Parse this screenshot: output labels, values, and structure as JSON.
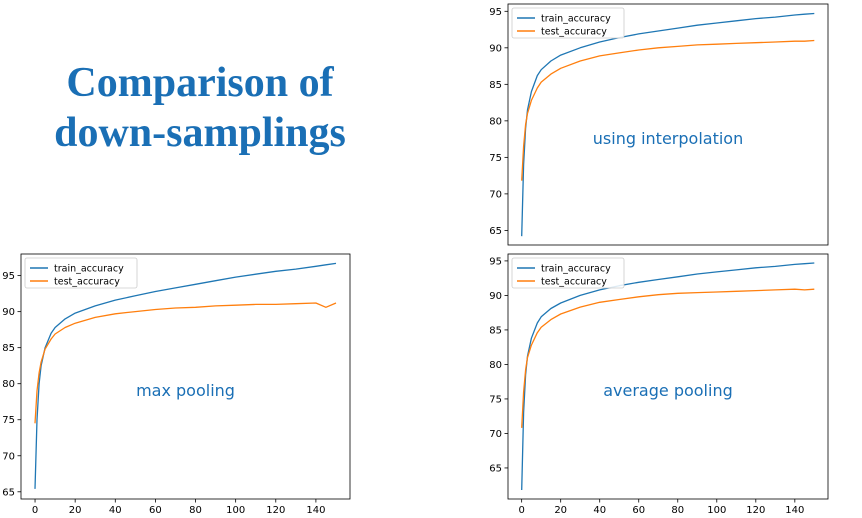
{
  "slide": {
    "title_line1": "Comparison of",
    "title_line2": "down-samplings"
  },
  "colors": {
    "title": "#1a6fb5",
    "train": "#1f77b4",
    "test": "#ff7f0e",
    "annotation": "#1a6fb5"
  },
  "chart_data": [
    {
      "id": "interp",
      "type": "line",
      "annotation": "using interpolation",
      "xlim": [
        -7,
        157
      ],
      "ylim": [
        63,
        96
      ],
      "xticks": [],
      "yticks": [
        65,
        70,
        75,
        80,
        85,
        90,
        95
      ],
      "legend": "top-left",
      "series": [
        {
          "name": "train_accuracy",
          "x": [
            0,
            1,
            2,
            3,
            5,
            8,
            10,
            15,
            20,
            30,
            40,
            50,
            60,
            70,
            80,
            90,
            100,
            110,
            120,
            130,
            140,
            145,
            150
          ],
          "values": [
            64.2,
            74.0,
            79.0,
            81.5,
            84.0,
            86.2,
            87.0,
            88.2,
            89.0,
            90.0,
            90.8,
            91.4,
            91.9,
            92.3,
            92.7,
            93.1,
            93.4,
            93.7,
            94.0,
            94.2,
            94.5,
            94.6,
            94.7
          ]
        },
        {
          "name": "test_accuracy",
          "x": [
            0,
            1,
            2,
            3,
            5,
            8,
            10,
            15,
            20,
            30,
            40,
            50,
            60,
            70,
            80,
            90,
            100,
            110,
            120,
            130,
            140,
            145,
            150
          ],
          "values": [
            71.8,
            76.5,
            79.5,
            81.0,
            82.8,
            84.5,
            85.3,
            86.4,
            87.2,
            88.2,
            88.9,
            89.3,
            89.7,
            90.0,
            90.2,
            90.4,
            90.5,
            90.6,
            90.7,
            90.8,
            90.9,
            90.9,
            91.0
          ]
        }
      ]
    },
    {
      "id": "max",
      "type": "line",
      "annotation": "max pooling",
      "xlim": [
        -7,
        157
      ],
      "ylim": [
        64,
        98
      ],
      "xticks": [
        0,
        20,
        40,
        60,
        80,
        100,
        120,
        140
      ],
      "yticks": [
        65,
        70,
        75,
        80,
        85,
        90,
        95
      ],
      "legend": "top-left",
      "series": [
        {
          "name": "train_accuracy",
          "x": [
            0,
            1,
            2,
            3,
            5,
            8,
            10,
            15,
            20,
            30,
            40,
            50,
            60,
            70,
            80,
            90,
            100,
            110,
            120,
            130,
            140,
            145,
            150
          ],
          "values": [
            65.4,
            75.0,
            80.0,
            82.5,
            85.0,
            87.0,
            87.8,
            89.0,
            89.8,
            90.8,
            91.6,
            92.2,
            92.8,
            93.3,
            93.8,
            94.3,
            94.8,
            95.2,
            95.6,
            95.9,
            96.3,
            96.5,
            96.7
          ]
        },
        {
          "name": "test_accuracy",
          "x": [
            0,
            1,
            2,
            3,
            5,
            8,
            10,
            15,
            20,
            30,
            40,
            50,
            60,
            70,
            80,
            90,
            100,
            110,
            120,
            130,
            140,
            145,
            150
          ],
          "values": [
            74.5,
            79.0,
            81.5,
            83.0,
            84.8,
            86.2,
            86.9,
            87.8,
            88.4,
            89.2,
            89.7,
            90.0,
            90.3,
            90.5,
            90.6,
            90.8,
            90.9,
            91.0,
            91.0,
            91.1,
            91.2,
            90.6,
            91.2
          ]
        }
      ]
    },
    {
      "id": "avg",
      "type": "line",
      "annotation": "average pooling",
      "xlim": [
        -7,
        157
      ],
      "ylim": [
        60.5,
        96
      ],
      "xticks": [
        0,
        20,
        40,
        60,
        80,
        100,
        120,
        140
      ],
      "yticks": [
        65,
        70,
        75,
        80,
        85,
        90,
        95
      ],
      "legend": "top-left",
      "series": [
        {
          "name": "train_accuracy",
          "x": [
            0,
            1,
            2,
            3,
            5,
            8,
            10,
            15,
            20,
            30,
            40,
            50,
            60,
            70,
            80,
            90,
            100,
            110,
            120,
            130,
            140,
            145,
            150
          ],
          "values": [
            61.8,
            73.0,
            78.5,
            81.2,
            83.8,
            86.0,
            86.9,
            88.1,
            88.9,
            90.0,
            90.8,
            91.4,
            91.9,
            92.3,
            92.7,
            93.1,
            93.4,
            93.7,
            94.0,
            94.2,
            94.5,
            94.6,
            94.7
          ]
        },
        {
          "name": "test_accuracy",
          "x": [
            0,
            1,
            2,
            3,
            5,
            8,
            10,
            15,
            20,
            30,
            40,
            50,
            60,
            70,
            80,
            90,
            100,
            110,
            120,
            130,
            140,
            145,
            150
          ],
          "values": [
            70.8,
            76.0,
            79.2,
            81.0,
            82.8,
            84.6,
            85.4,
            86.5,
            87.3,
            88.3,
            89.0,
            89.4,
            89.8,
            90.1,
            90.3,
            90.4,
            90.5,
            90.6,
            90.7,
            90.8,
            90.9,
            90.8,
            90.9
          ]
        }
      ]
    }
  ]
}
